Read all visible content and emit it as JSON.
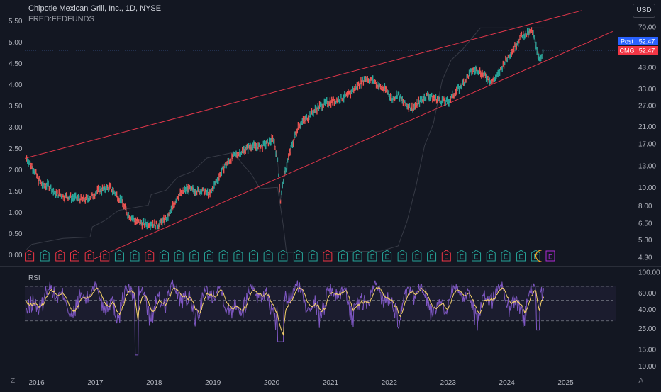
{
  "header": {
    "title": "Chipotle Mexican Grill, Inc., 1D, NYSE",
    "overlay_label": "FRED:FEDFUNDS",
    "currency_button": "USD"
  },
  "price_badges": [
    {
      "label": "Post",
      "value": "52.47",
      "color": "#2962ff"
    },
    {
      "label": "CMG",
      "value": "52.47",
      "color": "#f23645"
    }
  ],
  "rsi_pane": {
    "label": "RSI"
  },
  "bottom_buttons": {
    "left": "Z",
    "right": "A"
  },
  "earnings_markers": [
    {
      "t": 2015.93,
      "kind": "miss"
    },
    {
      "t": 2016.19,
      "kind": "beat"
    },
    {
      "t": 2016.45,
      "kind": "miss"
    },
    {
      "t": 2016.7,
      "kind": "miss"
    },
    {
      "t": 2016.95,
      "kind": "miss"
    },
    {
      "t": 2017.21,
      "kind": "miss"
    },
    {
      "t": 2017.46,
      "kind": "beat"
    },
    {
      "t": 2017.72,
      "kind": "beat"
    },
    {
      "t": 2017.97,
      "kind": "miss"
    },
    {
      "t": 2018.22,
      "kind": "beat"
    },
    {
      "t": 2018.47,
      "kind": "beat"
    },
    {
      "t": 2018.73,
      "kind": "beat"
    },
    {
      "t": 2018.98,
      "kind": "beat"
    },
    {
      "t": 2019.23,
      "kind": "beat"
    },
    {
      "t": 2019.48,
      "kind": "beat"
    },
    {
      "t": 2019.74,
      "kind": "beat"
    },
    {
      "t": 2019.99,
      "kind": "beat"
    },
    {
      "t": 2020.24,
      "kind": "beat"
    },
    {
      "t": 2020.5,
      "kind": "beat"
    },
    {
      "t": 2020.75,
      "kind": "beat"
    },
    {
      "t": 2021.0,
      "kind": "miss"
    },
    {
      "t": 2021.26,
      "kind": "beat"
    },
    {
      "t": 2021.51,
      "kind": "beat"
    },
    {
      "t": 2021.76,
      "kind": "beat"
    },
    {
      "t": 2022.01,
      "kind": "beat"
    },
    {
      "t": 2022.27,
      "kind": "beat"
    },
    {
      "t": 2022.52,
      "kind": "beat"
    },
    {
      "t": 2022.77,
      "kind": "beat"
    },
    {
      "t": 2023.02,
      "kind": "miss"
    },
    {
      "t": 2023.28,
      "kind": "beat"
    },
    {
      "t": 2023.53,
      "kind": "beat"
    },
    {
      "t": 2023.78,
      "kind": "beat"
    },
    {
      "t": 2024.03,
      "kind": "beat"
    },
    {
      "t": 2024.29,
      "kind": "beat"
    },
    {
      "t": 2024.54,
      "kind": "beat"
    },
    {
      "t": 2024.79,
      "kind": "upcoming"
    }
  ],
  "chart_data": {
    "type": "line",
    "x_axis": {
      "ticks": [
        "2016",
        "2017",
        "2018",
        "2019",
        "2020",
        "2021",
        "2022",
        "2023",
        "2024",
        "2025"
      ],
      "range": [
        2015.85,
        2025.9
      ]
    },
    "left_axis": {
      "series": "FRED:FEDFUNDS",
      "ticks": [
        "5.50",
        "5.00",
        "4.50",
        "4.00",
        "3.50",
        "3.00",
        "2.50",
        "2.00",
        "1.50",
        "1.00",
        "0.50",
        "0.00"
      ],
      "range": [
        -0.15,
        5.62
      ]
    },
    "right_axis": {
      "series": "CMG",
      "scale": "log",
      "ticks": [
        "70.00",
        "53.00",
        "43.00",
        "33.00",
        "27.00",
        "21.00",
        "17.00",
        "13.00",
        "10.00",
        "8.00",
        "6.50",
        "5.30",
        "4.30"
      ],
      "range": [
        4.1,
        80
      ]
    },
    "rsi_axis": {
      "scale": "log",
      "ticks": [
        "100.00",
        "60.00",
        "40.00",
        "25.00",
        "15.00",
        "10.00"
      ],
      "range": [
        9,
        110
      ],
      "band_upper": 70,
      "band_mid": 50,
      "band_lower": 30
    },
    "series": [
      {
        "name": "CMG",
        "axis": "right",
        "points": [
          [
            2015.88,
            14.2
          ],
          [
            2016.0,
            12.5
          ],
          [
            2016.08,
            11.0
          ],
          [
            2016.16,
            10.2
          ],
          [
            2016.25,
            10.3
          ],
          [
            2016.35,
            9.4
          ],
          [
            2016.5,
            9.0
          ],
          [
            2016.7,
            8.8
          ],
          [
            2016.85,
            8.6
          ],
          [
            2016.98,
            8.9
          ],
          [
            2017.1,
            9.6
          ],
          [
            2017.3,
            10.0
          ],
          [
            2017.4,
            9.2
          ],
          [
            2017.5,
            8.4
          ],
          [
            2017.6,
            7.2
          ],
          [
            2017.75,
            6.6
          ],
          [
            2017.9,
            6.4
          ],
          [
            2018.0,
            6.5
          ],
          [
            2018.1,
            6.3
          ],
          [
            2018.2,
            6.6
          ],
          [
            2018.3,
            7.1
          ],
          [
            2018.45,
            9.0
          ],
          [
            2018.6,
            9.8
          ],
          [
            2018.75,
            9.6
          ],
          [
            2018.9,
            9.5
          ],
          [
            2019.0,
            9.2
          ],
          [
            2019.1,
            10.6
          ],
          [
            2019.25,
            13.0
          ],
          [
            2019.4,
            14.5
          ],
          [
            2019.55,
            15.5
          ],
          [
            2019.7,
            16.5
          ],
          [
            2019.85,
            16.2
          ],
          [
            2019.95,
            16.8
          ],
          [
            2020.08,
            18.0
          ],
          [
            2020.15,
            14.0
          ],
          [
            2020.2,
            8.5
          ],
          [
            2020.25,
            11.0
          ],
          [
            2020.35,
            15.0
          ],
          [
            2020.5,
            21.0
          ],
          [
            2020.7,
            24.0
          ],
          [
            2020.85,
            26.5
          ],
          [
            2021.0,
            28.0
          ],
          [
            2021.2,
            29.0
          ],
          [
            2021.35,
            30.5
          ],
          [
            2021.5,
            34.0
          ],
          [
            2021.65,
            37.5
          ],
          [
            2021.8,
            36.0
          ],
          [
            2021.9,
            33.5
          ],
          [
            2022.0,
            32.5
          ],
          [
            2022.1,
            29.0
          ],
          [
            2022.2,
            31.0
          ],
          [
            2022.3,
            27.5
          ],
          [
            2022.45,
            26.0
          ],
          [
            2022.55,
            28.0
          ],
          [
            2022.7,
            30.5
          ],
          [
            2022.8,
            29.5
          ],
          [
            2022.95,
            28.5
          ],
          [
            2023.05,
            28.0
          ],
          [
            2023.15,
            31.0
          ],
          [
            2023.3,
            35.0
          ],
          [
            2023.45,
            41.0
          ],
          [
            2023.55,
            41.5
          ],
          [
            2023.7,
            38.0
          ],
          [
            2023.8,
            36.0
          ],
          [
            2023.9,
            39.0
          ],
          [
            2024.0,
            45.0
          ],
          [
            2024.1,
            50.0
          ],
          [
            2024.2,
            56.0
          ],
          [
            2024.3,
            63.0
          ],
          [
            2024.4,
            64.0
          ],
          [
            2024.47,
            66.0
          ],
          [
            2024.53,
            60.0
          ],
          [
            2024.58,
            50.0
          ],
          [
            2024.63,
            47.0
          ],
          [
            2024.68,
            52.47
          ]
        ]
      },
      {
        "name": "FRED:FEDFUNDS",
        "axis": "left",
        "points": [
          [
            2015.88,
            0.12
          ],
          [
            2015.97,
            0.24
          ],
          [
            2016.5,
            0.38
          ],
          [
            2016.96,
            0.41
          ],
          [
            2017.0,
            0.65
          ],
          [
            2017.2,
            0.79
          ],
          [
            2017.45,
            1.04
          ],
          [
            2017.95,
            1.16
          ],
          [
            2018.0,
            1.41
          ],
          [
            2018.25,
            1.51
          ],
          [
            2018.45,
            1.82
          ],
          [
            2018.7,
            1.95
          ],
          [
            2018.95,
            2.27
          ],
          [
            2019.4,
            2.4
          ],
          [
            2019.55,
            2.13
          ],
          [
            2019.7,
            1.9
          ],
          [
            2019.85,
            1.55
          ],
          [
            2020.15,
            1.58
          ],
          [
            2020.25,
            0.65
          ],
          [
            2020.3,
            0.05
          ],
          [
            2021.9,
            0.08
          ],
          [
            2022.2,
            0.2
          ],
          [
            2022.35,
            0.77
          ],
          [
            2022.5,
            1.58
          ],
          [
            2022.65,
            2.56
          ],
          [
            2022.8,
            3.08
          ],
          [
            2022.95,
            4.1
          ],
          [
            2023.1,
            4.57
          ],
          [
            2023.3,
            4.83
          ],
          [
            2023.45,
            5.08
          ],
          [
            2023.6,
            5.33
          ],
          [
            2024.68,
            5.33
          ]
        ]
      }
    ],
    "trendlines": [
      {
        "label": "upper",
        "from": [
          2015.85,
          14.2
        ],
        "to": [
          2025.32,
          85
        ]
      },
      {
        "label": "lower",
        "from": [
          2017.03,
          4.2
        ],
        "to": [
          2025.85,
          66
        ]
      }
    ],
    "last_price": 52.47
  }
}
